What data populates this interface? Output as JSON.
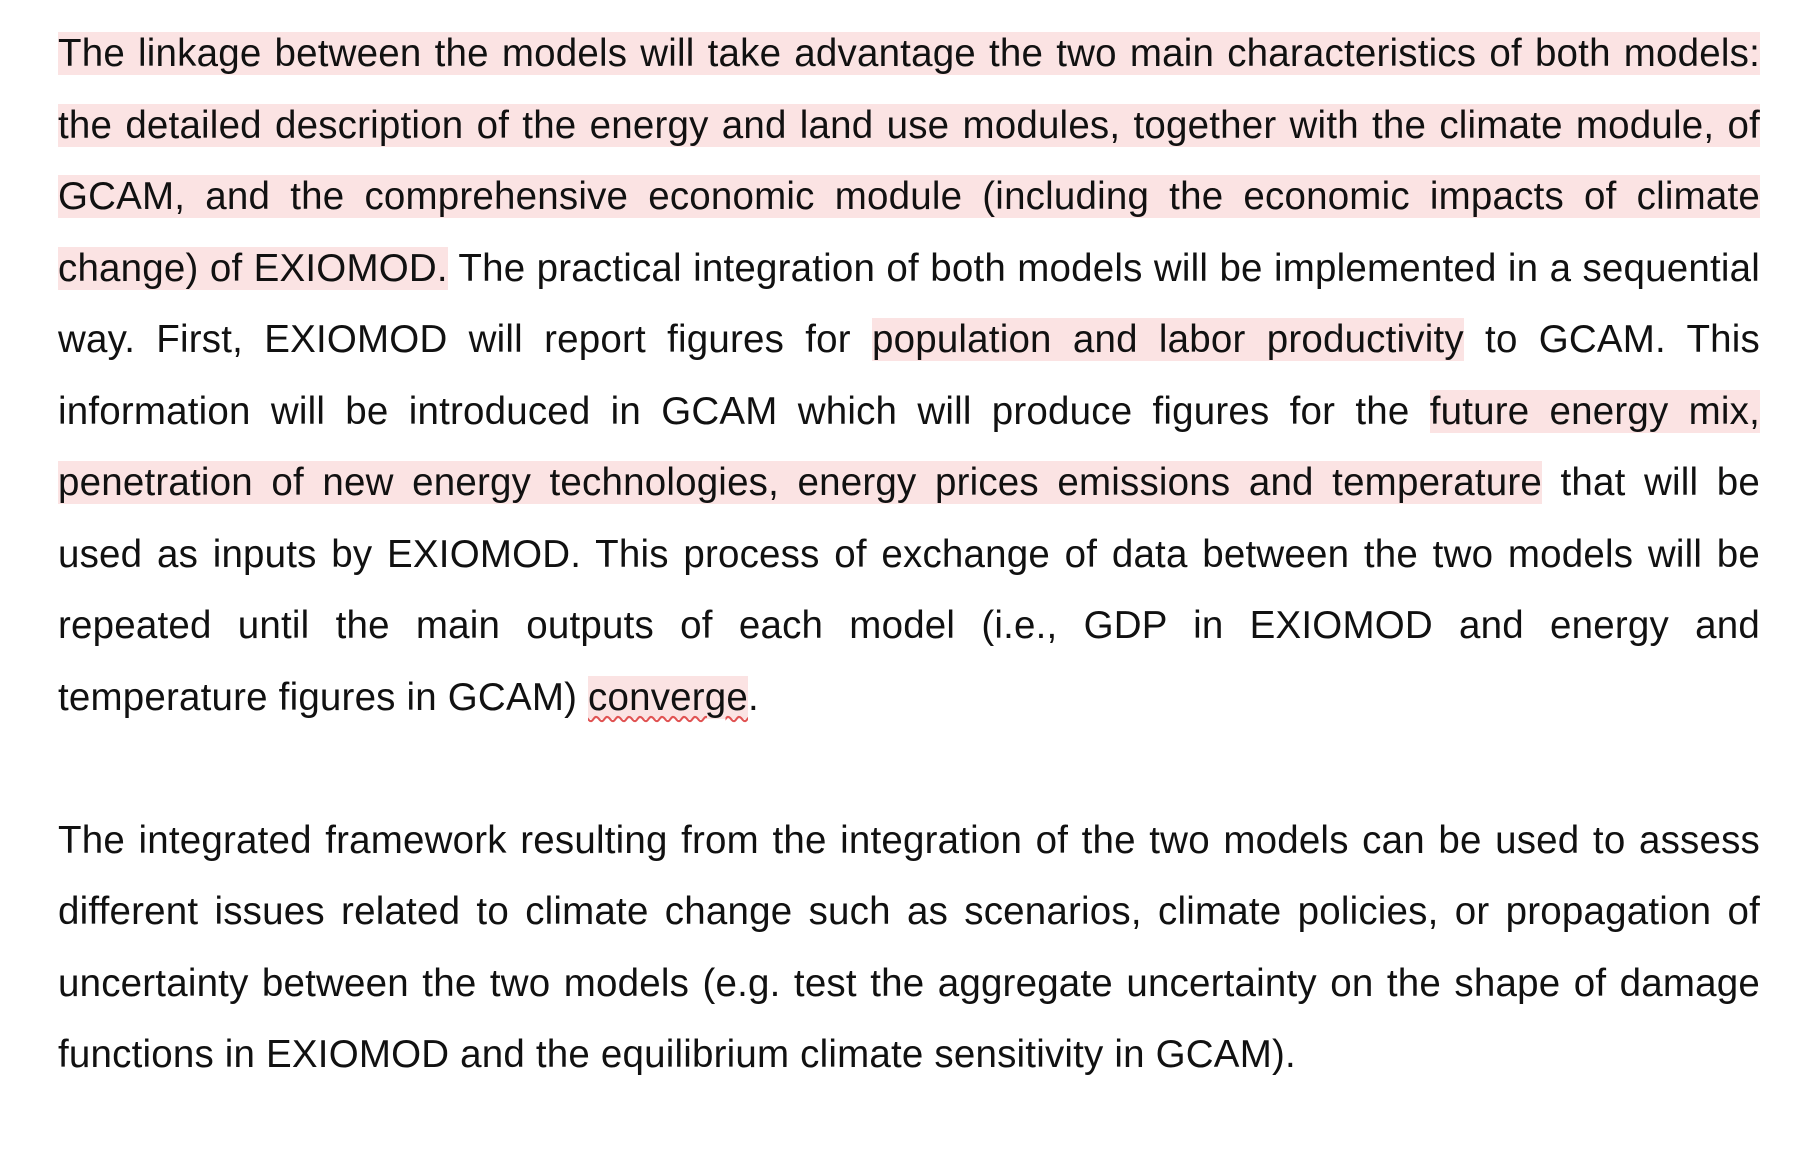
{
  "paragraph1": {
    "s1_hl": "The linkage between the models will take advantage the two main characteristics of both models: the detailed description of the energy and land use modules, together with the climate module, of GCAM, and the comprehensive economic module (including the economic impacts of climate change) of EXIOMOD.",
    "s2": " The practical integration of both models will be implemented in a sequential way. First, EXIOMOD will report figures for ",
    "s3_hl": "population and labor productivity",
    "s4": " to GCAM. This information will be introduced in GCAM which will produce figures for the ",
    "s5_hl": "future energy mix, penetration of new energy technologies, energy prices emissions and temperature",
    "s6": " that will be used as inputs by EXIOMOD. This process of exchange of data between the two models will be repeated until the main outputs of each model (i.e., GDP in EXIOMOD and energy and temperature figures in GCAM) ",
    "s7_flagged": "converge",
    "s8": "."
  },
  "paragraph2": {
    "text": "The integrated framework resulting from the integration of the two models can be used to assess different issues related to climate change such as scenarios, climate policies, or propagation of uncertainty between the two models (e.g. test the aggregate uncertainty on the shape of damage functions in EXIOMOD and the equilibrium climate sensitivity in GCAM)."
  },
  "colors": {
    "highlight": "#fbe3e3",
    "spellcheck_underline": "#e05252",
    "text": "#111111"
  }
}
